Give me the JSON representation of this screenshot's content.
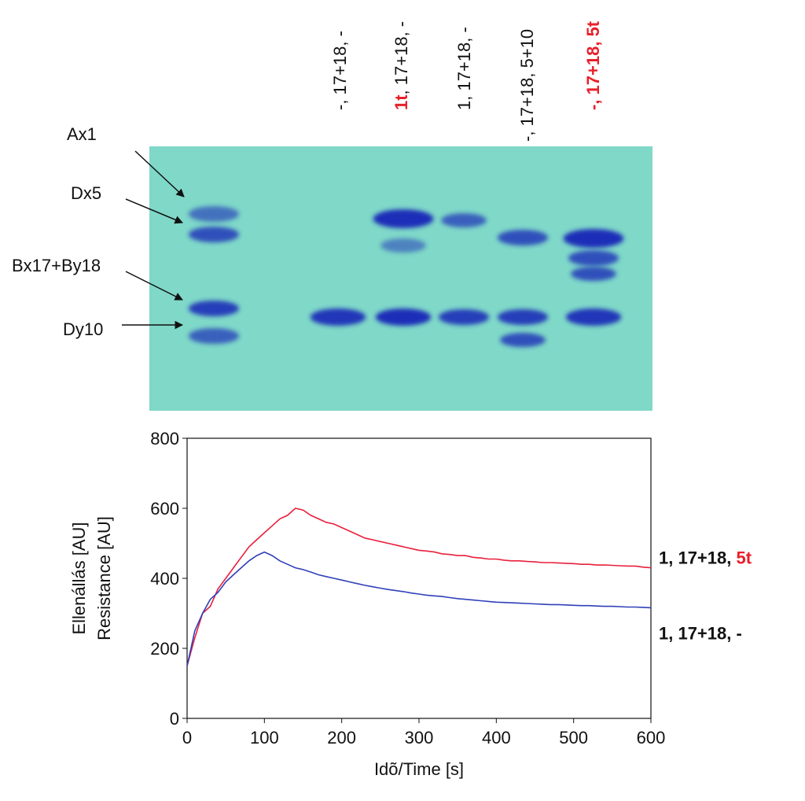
{
  "gel": {
    "band_labels": [
      "Ax1",
      "Dx5",
      "Bx17+By18",
      "Dy10"
    ],
    "lanes": [
      {
        "parts": [
          "-, 17+18, -"
        ]
      },
      {
        "parts": [
          "1t",
          ", 17+18, -"
        ],
        "highlight": [
          0
        ]
      },
      {
        "parts": [
          "1, 17+18, -"
        ]
      },
      {
        "parts": [
          "-, 17+18, 5+10"
        ]
      },
      {
        "parts": [
          "-, 17+18, 5t"
        ],
        "highlight": [
          0
        ]
      }
    ],
    "highlight_color": "#e8202a"
  },
  "chart_data": {
    "type": "line",
    "xlabel": "Idõ/Time [s]",
    "ylabel": [
      "Ellenállás [AU]",
      "Resistance [AU]"
    ],
    "xlim": [
      0,
      600
    ],
    "ylim": [
      0,
      800
    ],
    "xticks": [
      0,
      100,
      200,
      300,
      400,
      500,
      600
    ],
    "yticks": [
      0,
      200,
      400,
      600,
      800
    ],
    "highlight_color": "#e8202a",
    "x": [
      0,
      10,
      20,
      30,
      40,
      50,
      60,
      70,
      80,
      90,
      100,
      110,
      120,
      130,
      140,
      150,
      160,
      170,
      180,
      190,
      200,
      210,
      220,
      230,
      240,
      250,
      260,
      270,
      280,
      290,
      300,
      310,
      320,
      330,
      340,
      350,
      360,
      370,
      380,
      390,
      400,
      410,
      420,
      430,
      440,
      450,
      460,
      470,
      480,
      490,
      500,
      510,
      520,
      530,
      540,
      550,
      560,
      570,
      580,
      590,
      600
    ],
    "series": [
      {
        "name_parts": [
          "1, 17+18, ",
          "5t"
        ],
        "highlight": [
          1
        ],
        "color": "#e8203c",
        "values": [
          150,
          230,
          300,
          320,
          370,
          400,
          430,
          460,
          490,
          510,
          530,
          550,
          570,
          580,
          600,
          595,
          580,
          570,
          560,
          555,
          545,
          535,
          525,
          515,
          510,
          505,
          500,
          495,
          490,
          485,
          480,
          478,
          475,
          470,
          468,
          465,
          465,
          460,
          458,
          455,
          455,
          452,
          450,
          450,
          448,
          447,
          445,
          445,
          444,
          443,
          442,
          440,
          440,
          438,
          438,
          437,
          436,
          435,
          435,
          432,
          430
        ]
      },
      {
        "name_parts": [
          "1, 17+18, -"
        ],
        "color": "#3040b8",
        "values": [
          150,
          250,
          300,
          340,
          360,
          390,
          410,
          430,
          450,
          465,
          475,
          465,
          450,
          440,
          430,
          425,
          418,
          410,
          405,
          400,
          395,
          390,
          385,
          380,
          376,
          372,
          368,
          365,
          362,
          358,
          355,
          352,
          350,
          348,
          345,
          342,
          340,
          338,
          336,
          334,
          332,
          331,
          330,
          329,
          328,
          327,
          326,
          325,
          325,
          324,
          323,
          322,
          322,
          321,
          320,
          320,
          319,
          318,
          318,
          317,
          316
        ]
      }
    ]
  }
}
